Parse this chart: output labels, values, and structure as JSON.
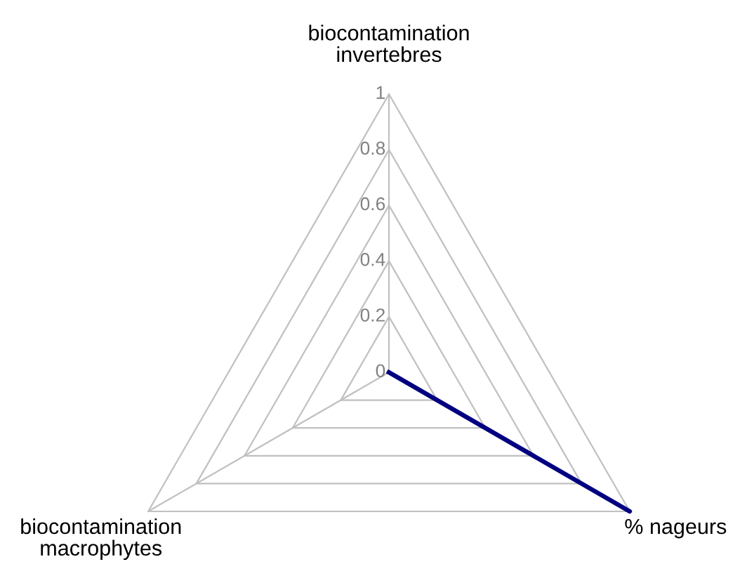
{
  "chart_data": {
    "type": "radar",
    "categories": [
      "biocontamination\ninvertebres",
      "% nageurs",
      "biocontamination\nmacrophytes"
    ],
    "series": [
      {
        "color": "#000080",
        "values": [
          0,
          1,
          0
        ]
      }
    ],
    "ylim": [
      0,
      1
    ],
    "yticks": [
      0,
      0.2,
      0.4,
      0.6,
      0.8,
      1
    ],
    "grid": true
  }
}
